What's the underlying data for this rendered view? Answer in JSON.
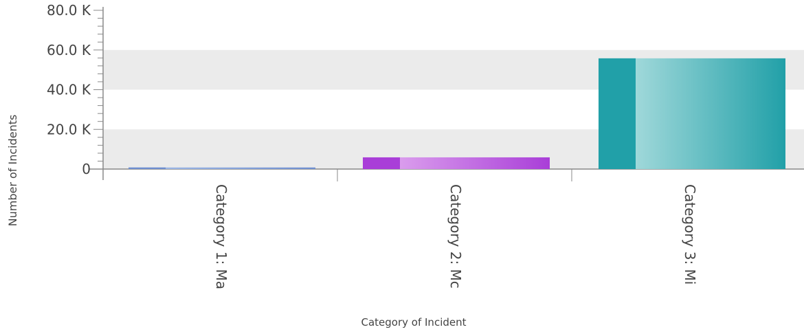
{
  "chart_data": {
    "type": "bar",
    "title": "",
    "xlabel": "Category of Incident",
    "ylabel": "Number of Incidents",
    "categories": [
      "Category 1: Ma",
      "Category 2: Mc",
      "Category 3: Mi"
    ],
    "values": [
      800,
      5900,
      55800
    ],
    "ylim": [
      0,
      80000
    ],
    "yticks": [
      0,
      20000,
      40000,
      60000,
      80000
    ],
    "ytick_labels": [
      "0",
      "20.0 K",
      "40.0 K",
      "60.0 K",
      "80.0 K"
    ],
    "grid": "alternating horizontal bands",
    "legend": "none",
    "colors": {
      "bar_1": [
        "#6f8fcf",
        "#a8c0ea"
      ],
      "bar_2": [
        "#a93ed8",
        "#e6b4f2"
      ],
      "bar_3": [
        "#21a0a8",
        "#bfe6e6"
      ],
      "band": "#ebebeb",
      "axis": "#888888"
    }
  }
}
